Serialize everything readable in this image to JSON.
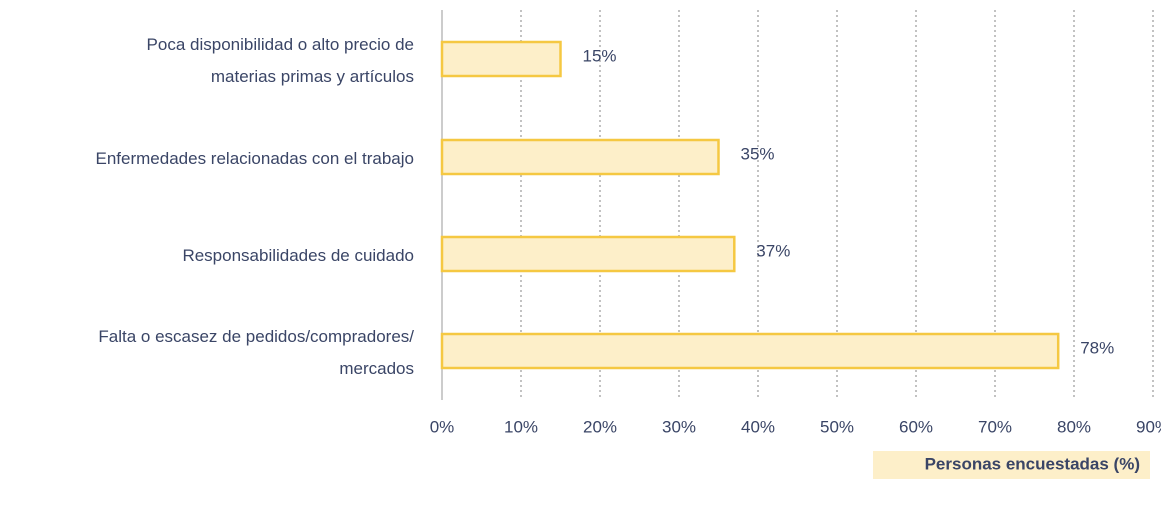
{
  "chart_data": {
    "type": "barh",
    "categories": [
      "Poca disponibilidad o alto precio de\nmaterias primas y artículos",
      "Enfermedades relacionadas con el trabajo",
      "Responsabilidades de cuidado",
      "Falta o escasez de pedidos/compradores/\nmercados"
    ],
    "values": [
      15,
      35,
      37,
      78
    ],
    "value_labels": [
      "15%",
      "35%",
      "37%",
      "78%"
    ],
    "color": "#fdefc9",
    "edge_color": "#f5c842",
    "xlim": [
      0,
      90
    ],
    "xticks": [
      {
        "value": 0,
        "label": "0%"
      },
      {
        "value": 10,
        "label": "10%"
      },
      {
        "value": 20,
        "label": "20%"
      },
      {
        "value": 30,
        "label": "30%"
      },
      {
        "value": 40,
        "label": "40%"
      },
      {
        "value": 50,
        "label": "50%"
      },
      {
        "value": 60,
        "label": "60%"
      },
      {
        "value": 70,
        "label": "70%"
      },
      {
        "value": 80,
        "label": "80%"
      },
      {
        "value": 90,
        "label": "90%"
      }
    ],
    "grid": true,
    "xlabel": "Personas encuestadas (%)"
  }
}
